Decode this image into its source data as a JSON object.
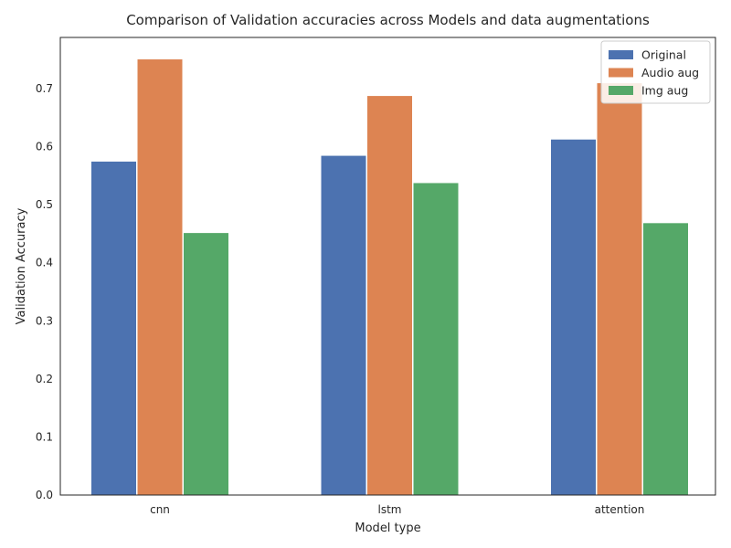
{
  "chart_data": {
    "type": "bar",
    "title": "Comparison of Validation accuracies across Models and data augmentations",
    "xlabel": "Model type",
    "ylabel": "Validation Accuracy",
    "categories": [
      "cnn",
      "lstm",
      "attention"
    ],
    "series": [
      {
        "name": "Original",
        "color": "#4c72b0",
        "values": [
          0.575,
          0.585,
          0.613
        ]
      },
      {
        "name": "Audio aug",
        "color": "#dd8452",
        "values": [
          0.751,
          0.688,
          0.71
        ]
      },
      {
        "name": "Img aug",
        "color": "#55a868",
        "values": [
          0.452,
          0.538,
          0.469
        ]
      }
    ],
    "ylim": [
      0,
      0.788
    ],
    "yticks": [
      0.0,
      0.1,
      0.2,
      0.3,
      0.4,
      0.5,
      0.6,
      0.7
    ],
    "ytick_labels": [
      "0.0",
      "0.1",
      "0.2",
      "0.3",
      "0.4",
      "0.5",
      "0.6",
      "0.7"
    ],
    "grid": false,
    "legend_position": "top-right"
  }
}
